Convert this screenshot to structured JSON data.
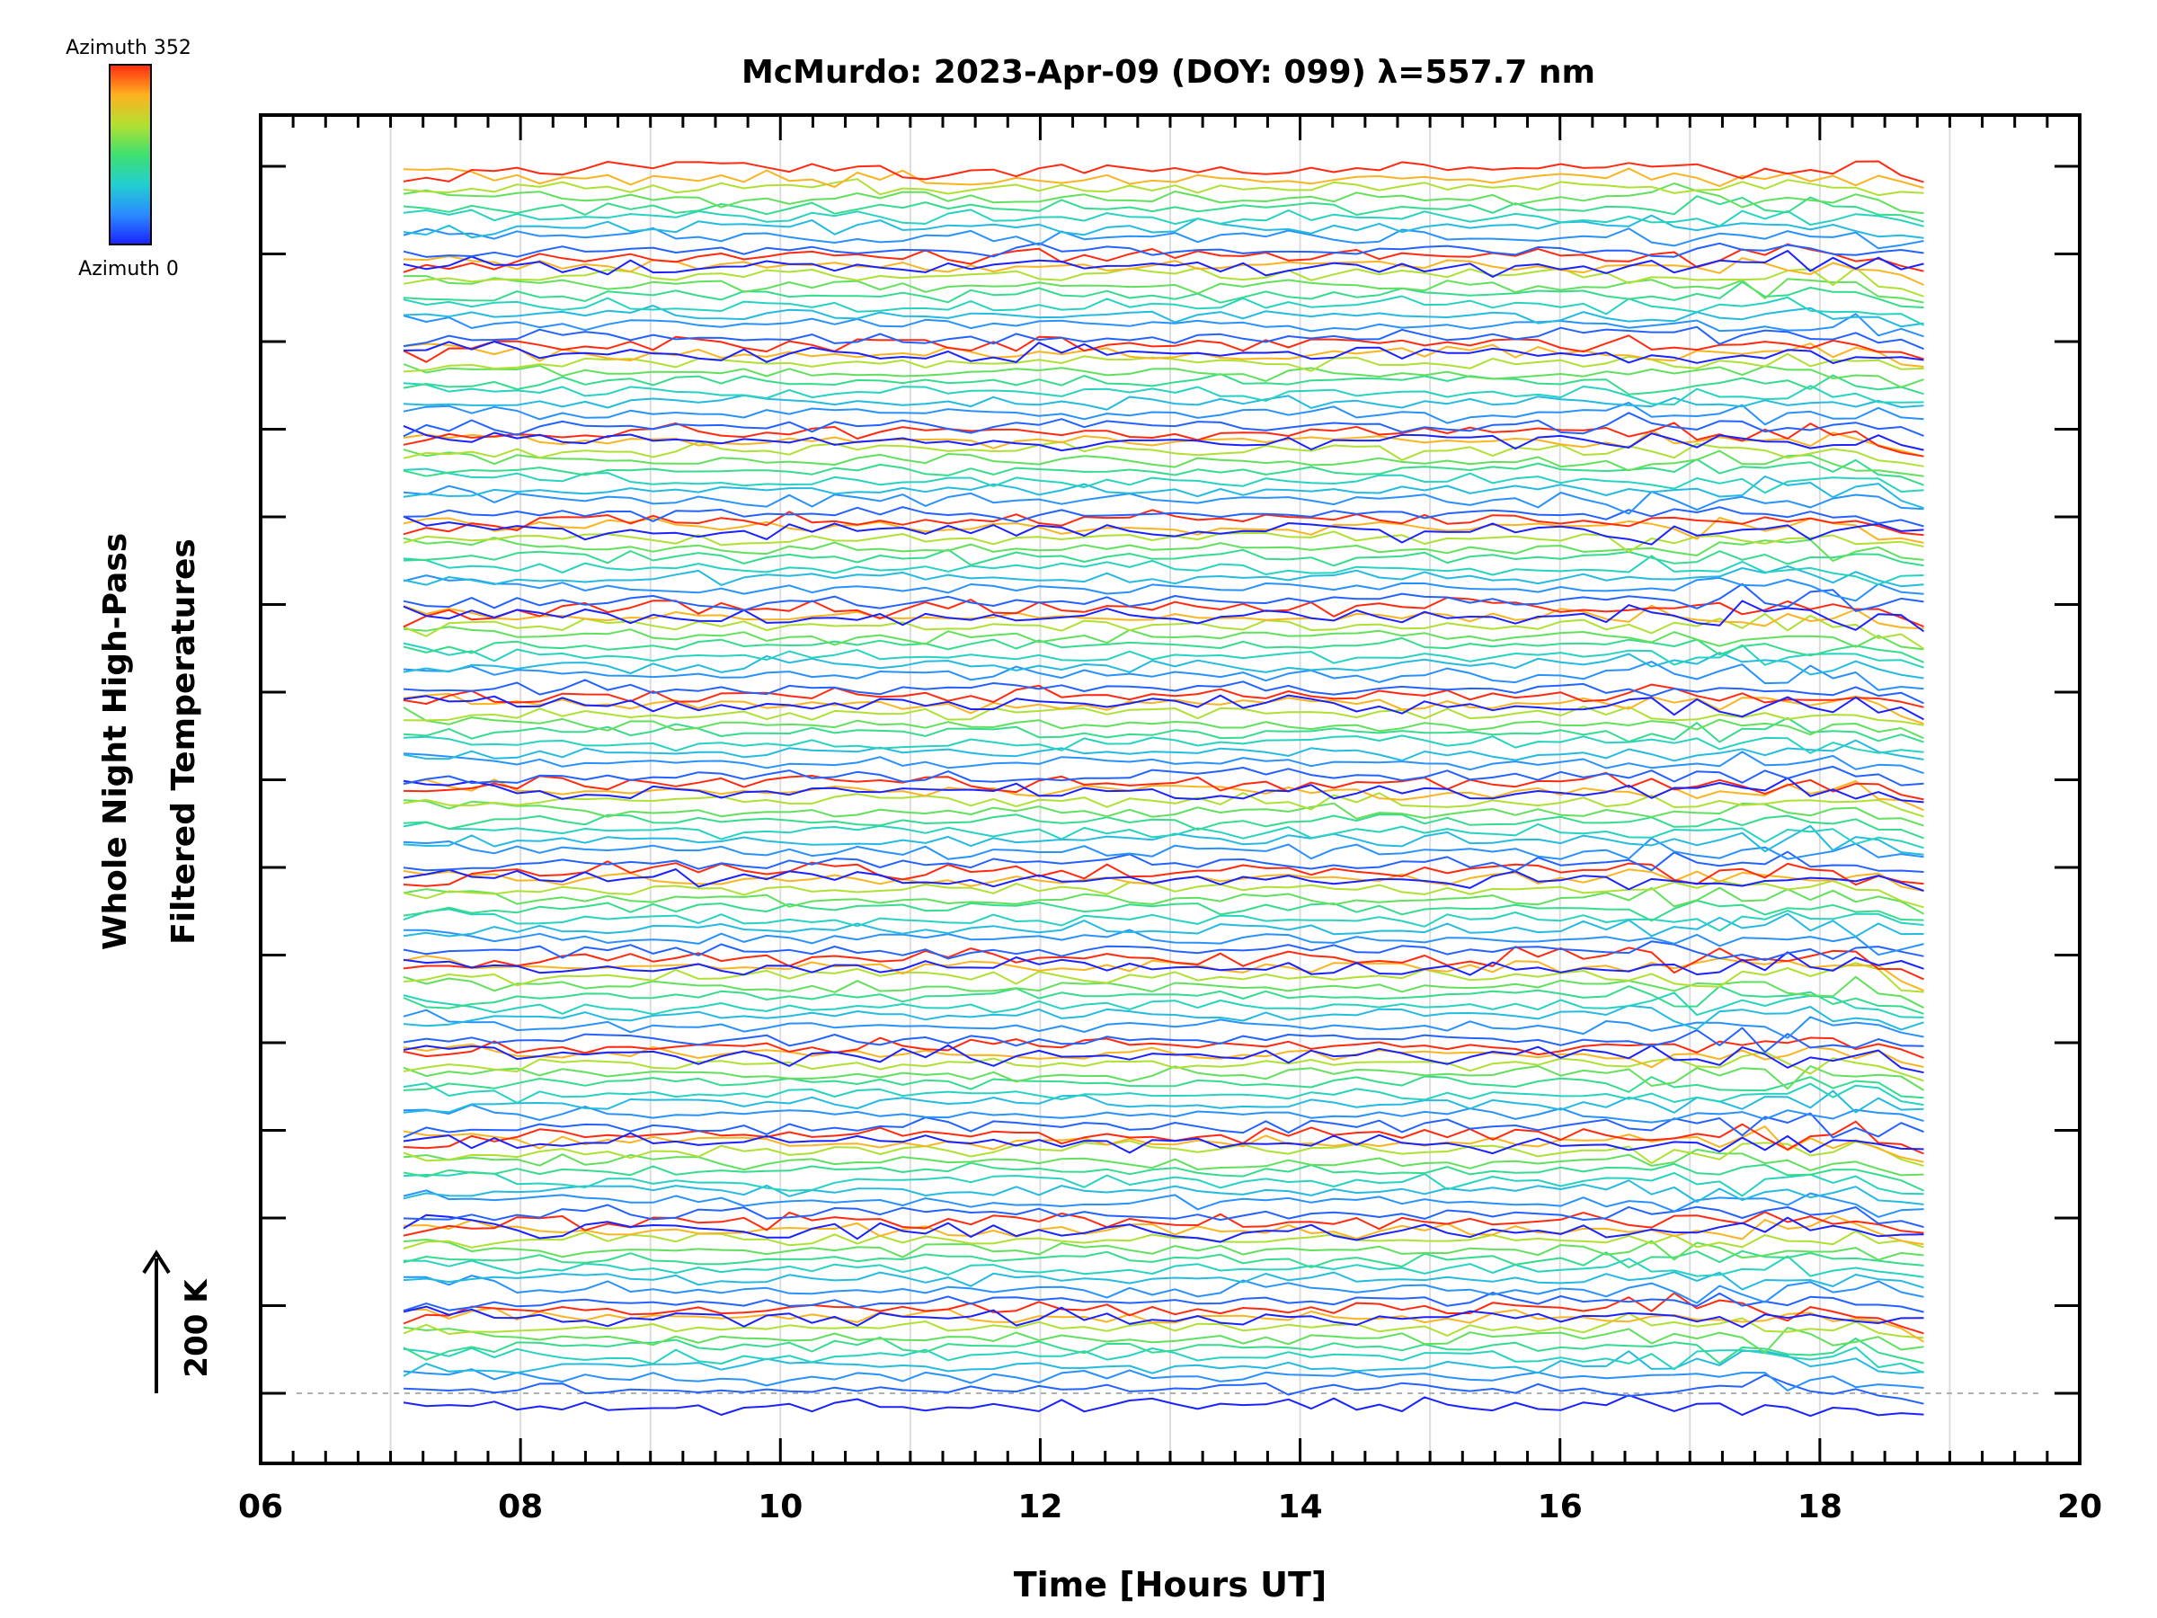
{
  "chart_data": {
    "type": "line",
    "title": "McMurdo: 2023-Apr-09 (DOY: 099) λ=557.7 nm",
    "xlabel": "Time [Hours UT]",
    "ylabel_line1": "Whole Night High-Pass",
    "ylabel_line2": "Filtered Temperatures",
    "scale_label": "200 K",
    "xlim": [
      6,
      20
    ],
    "x_ticks": [
      "06",
      "08",
      "10",
      "12",
      "14",
      "16",
      "18",
      "20"
    ],
    "x_tick_values": [
      6,
      8,
      10,
      12,
      14,
      16,
      18,
      20
    ],
    "data_start_hour": 7.1,
    "data_end_hour": 18.8,
    "series_groups": 14,
    "lines_per_group": 10,
    "group_spacing_ticks": 1,
    "colorbar": {
      "top_label": "Azimuth 352",
      "bottom_label": "Azimuth 0",
      "azimuth_min": 0,
      "azimuth_max": 352,
      "colors": [
        "#1a22ff",
        "#2a8cff",
        "#22cfd0",
        "#3fe070",
        "#b4e030",
        "#ffb020",
        "#ff2a10"
      ]
    },
    "vertical_gridlines_hours": [
      7,
      8,
      9,
      10,
      11,
      12,
      13,
      14,
      15,
      16,
      17,
      18,
      19
    ],
    "baseline_style": "dashed",
    "grid": true
  }
}
